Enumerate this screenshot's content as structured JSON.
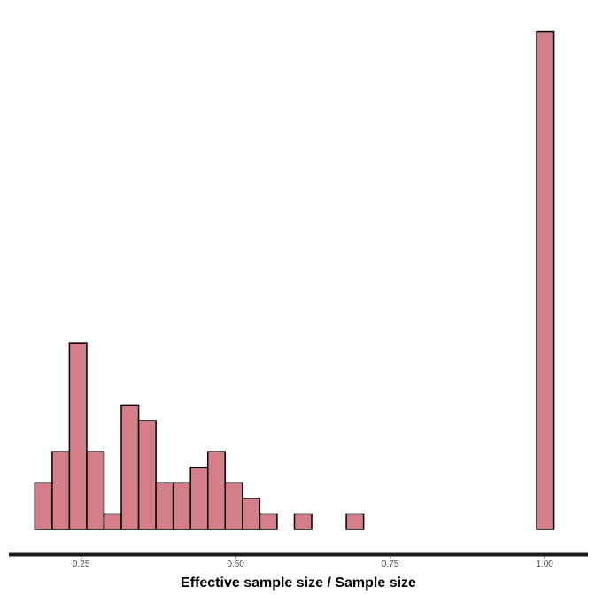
{
  "chart_data": {
    "type": "bar",
    "title": "",
    "xlabel": "Effective sample size / Sample size",
    "ylabel": "",
    "xlim": [
      0.133,
      1.07
    ],
    "ylim": [
      0,
      33
    ],
    "grid": false,
    "colors": {
      "fill": "#d47e89",
      "stroke": "#000000",
      "axis": "#1a1a1a"
    },
    "x_ticks": [
      {
        "value": 0.25,
        "label": "0.25"
      },
      {
        "value": 0.5,
        "label": "0.50"
      },
      {
        "value": 0.75,
        "label": "0.75"
      },
      {
        "value": 1.0,
        "label": "1.00"
      }
    ],
    "bins": [
      {
        "x0": 0.175,
        "x1": 0.203,
        "count": 3
      },
      {
        "x0": 0.203,
        "x1": 0.231,
        "count": 5
      },
      {
        "x0": 0.231,
        "x1": 0.259,
        "count": 12
      },
      {
        "x0": 0.259,
        "x1": 0.287,
        "count": 5
      },
      {
        "x0": 0.287,
        "x1": 0.315,
        "count": 1
      },
      {
        "x0": 0.315,
        "x1": 0.343,
        "count": 8
      },
      {
        "x0": 0.343,
        "x1": 0.371,
        "count": 7
      },
      {
        "x0": 0.371,
        "x1": 0.399,
        "count": 3
      },
      {
        "x0": 0.399,
        "x1": 0.427,
        "count": 3
      },
      {
        "x0": 0.427,
        "x1": 0.455,
        "count": 4
      },
      {
        "x0": 0.455,
        "x1": 0.483,
        "count": 5
      },
      {
        "x0": 0.483,
        "x1": 0.511,
        "count": 3
      },
      {
        "x0": 0.511,
        "x1": 0.539,
        "count": 2
      },
      {
        "x0": 0.539,
        "x1": 0.567,
        "count": 1
      },
      {
        "x0": 0.567,
        "x1": 0.595,
        "count": 0
      },
      {
        "x0": 0.595,
        "x1": 0.623,
        "count": 1
      },
      {
        "x0": 0.623,
        "x1": 0.651,
        "count": 0
      },
      {
        "x0": 0.651,
        "x1": 0.679,
        "count": 0
      },
      {
        "x0": 0.679,
        "x1": 0.707,
        "count": 1
      },
      {
        "x0": 0.707,
        "x1": 0.735,
        "count": 0
      },
      {
        "x0": 0.735,
        "x1": 0.763,
        "count": 0
      },
      {
        "x0": 0.763,
        "x1": 0.791,
        "count": 0
      },
      {
        "x0": 0.791,
        "x1": 0.819,
        "count": 0
      },
      {
        "x0": 0.819,
        "x1": 0.847,
        "count": 0
      },
      {
        "x0": 0.847,
        "x1": 0.875,
        "count": 0
      },
      {
        "x0": 0.875,
        "x1": 0.903,
        "count": 0
      },
      {
        "x0": 0.903,
        "x1": 0.931,
        "count": 0
      },
      {
        "x0": 0.931,
        "x1": 0.959,
        "count": 0
      },
      {
        "x0": 0.959,
        "x1": 0.987,
        "count": 0
      },
      {
        "x0": 0.987,
        "x1": 1.015,
        "count": 32
      }
    ]
  }
}
